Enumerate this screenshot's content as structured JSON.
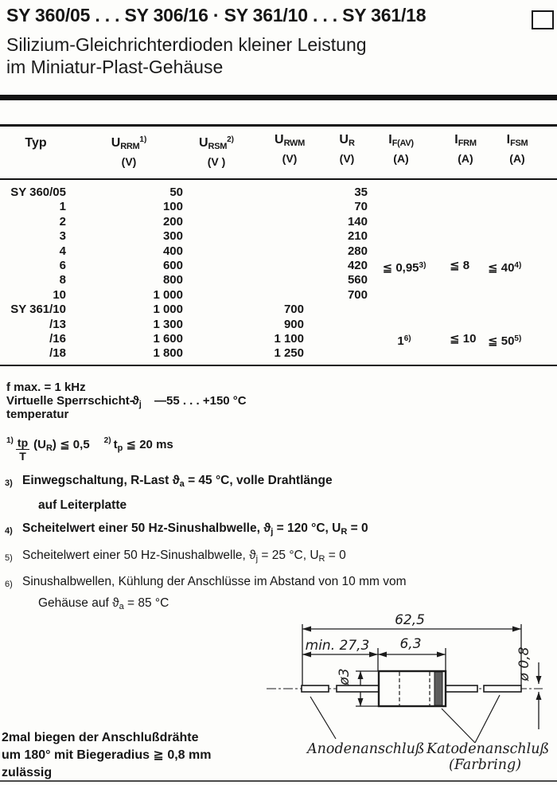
{
  "colors": {
    "ink": "#161616",
    "paper": "#fdfdfb"
  },
  "header": {
    "title": "SY 360/05 . . . SY 306/16 · SY 361/10 . . . SY 361/18",
    "subtitle_line1": "Silizium-Gleichrichterdioden kleiner Leistung",
    "subtitle_line2": "im Miniatur-Plast-Gehäuse"
  },
  "table": {
    "headers": [
      {
        "base": "Typ",
        "sub": "",
        "sup": "",
        "unit": ""
      },
      {
        "base": "U",
        "sub": "RRM",
        "sup": "1)",
        "unit": "(V)"
      },
      {
        "base": "U",
        "sub": "RSM",
        "sup": "2)",
        "unit": "(V )"
      },
      {
        "base": "U",
        "sub": "RWM",
        "sup": "",
        "unit": "(V)"
      },
      {
        "base": "U",
        "sub": "R",
        "sup": "",
        "unit": "(V)"
      },
      {
        "base": "I",
        "sub": "F(AV)",
        "sup": "",
        "unit": "(A)"
      },
      {
        "base": "I",
        "sub": "FRM",
        "sup": "",
        "unit": "(A)"
      },
      {
        "base": "I",
        "sub": "FSM",
        "sup": "",
        "unit": "(A)"
      }
    ],
    "rows": [
      [
        "SY 360/05",
        "50",
        "",
        "",
        "35",
        "",
        "",
        ""
      ],
      [
        "1",
        "100",
        "",
        "",
        "70",
        "",
        "",
        ""
      ],
      [
        "2",
        "200",
        "",
        "",
        "140",
        "",
        "",
        ""
      ],
      [
        "3",
        "300",
        "",
        "",
        "210",
        "",
        "",
        ""
      ],
      [
        "4",
        "400",
        "",
        "",
        "280",
        "",
        "",
        ""
      ],
      [
        "6",
        "600",
        "",
        "",
        "420",
        {
          "t": "≦ 0,95",
          "s": "3)"
        },
        "≦ 8",
        {
          "t": "≦ 40",
          "s": "4)"
        }
      ],
      [
        "8",
        "800",
        "",
        "",
        "560",
        "",
        "",
        ""
      ],
      [
        "10",
        "1 000",
        "",
        "",
        "700",
        "",
        "",
        ""
      ],
      [
        "SY 361/10",
        "1 000",
        "",
        "700",
        "",
        "",
        "",
        ""
      ],
      [
        "/13",
        "1 300",
        "",
        "900",
        "",
        "",
        "",
        ""
      ],
      [
        "/16",
        "1 600",
        "",
        "1 100",
        "",
        {
          "t": "1",
          "s": "6)"
        },
        "≦ 10",
        {
          "t": "≦ 50",
          "s": "5)"
        }
      ],
      [
        "/18",
        "1 800",
        "",
        "1 250",
        "",
        "",
        "",
        ""
      ]
    ]
  },
  "conditions": {
    "fmax": "f max. = 1 kHz",
    "junction_line1": "Virtuelle Sperrschicht-",
    "junction_line2": "temperatur",
    "junction_symbol": "ϑ",
    "junction_symbol_sub": "j",
    "junction_value": "—55 . . . +150 °C"
  },
  "footnote_inline": {
    "marker1": "1)",
    "frac_num": "tp",
    "frac_den": "T",
    "cond1_pre": "(U",
    "cond1_sub": "R",
    "cond1_rest": ") ≦ 0,5",
    "marker2": "2)",
    "cond2_pre": "t",
    "cond2_sub": "p",
    "cond2_rest": " ≦ 20 ms"
  },
  "footnotes": [
    {
      "marker": "3)",
      "bold": true,
      "lines": [
        [
          {
            "t": "Einwegschaltung, R-Last "
          },
          {
            "t": "ϑ"
          },
          {
            "sub": "a"
          },
          {
            "t": " = 45 °C, volle Drahtlänge"
          }
        ],
        [
          {
            "t": "auf Leiterplatte"
          }
        ]
      ]
    },
    {
      "marker": "4)",
      "bold": true,
      "lines": [
        [
          {
            "t": "Scheitelwert einer 50 Hz-Sinushalbwelle, "
          },
          {
            "t": "ϑ"
          },
          {
            "sub": "j"
          },
          {
            "t": " = 120 °C, U"
          },
          {
            "sub": "R"
          },
          {
            "t": " = 0"
          }
        ]
      ]
    },
    {
      "marker": "5)",
      "bold": false,
      "lines": [
        [
          {
            "t": "Scheitelwert einer 50 Hz-Sinushalbwelle, "
          },
          {
            "t": "ϑ"
          },
          {
            "sub": "j"
          },
          {
            "t": " = 25 °C, U"
          },
          {
            "sub": "R"
          },
          {
            "t": " = 0"
          }
        ]
      ]
    },
    {
      "marker": "6)",
      "bold": false,
      "lines": [
        [
          {
            "t": "Sinushalbwellen, Kühlung der Anschlüsse im Abstand von 10 mm vom"
          }
        ],
        [
          {
            "t": "Gehäuse auf "
          },
          {
            "t": "ϑ"
          },
          {
            "sub": "a"
          },
          {
            "t": " = 85 °C"
          }
        ]
      ]
    }
  ],
  "bend_note": {
    "line1": "2mal biegen der Anschlußdrähte",
    "line2": "um 180° mit Biegeradius ≧ 0,8 mm",
    "line3": "zulässig"
  },
  "diagram": {
    "dim_total": "62,5",
    "dim_lead_min": "min. 27,3",
    "dim_body": "6,3",
    "dia_body": "ø3",
    "dia_lead": "ø 0,8",
    "anode_label": "Anodenanschluß",
    "cathode_label": "Katodenanschluß",
    "cathode_sublabel": "(Farbring)"
  }
}
